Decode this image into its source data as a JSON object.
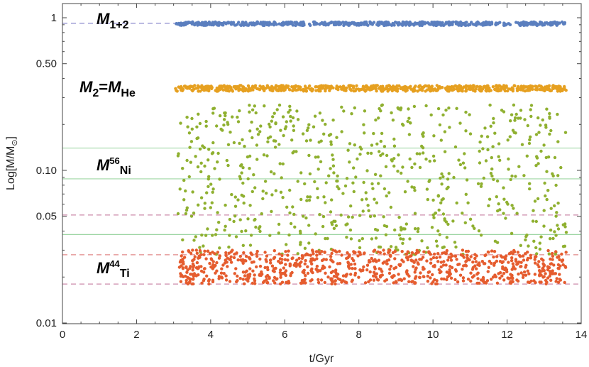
{
  "chart_data": {
    "type": "scatter",
    "title": "",
    "xlabel": "t/Gyr",
    "ylabel_main": "Log[M/M",
    "ylabel_sub": "⊙",
    "ylabel_close": "]",
    "xlim": [
      0,
      14
    ],
    "ylim": [
      0.01,
      1.2
    ],
    "yscale": "log",
    "grid": false,
    "x_ticks": [
      0,
      2,
      4,
      6,
      8,
      10,
      12,
      14
    ],
    "x_tick_labels": [
      "0",
      "2",
      "4",
      "6",
      "8",
      "10",
      "12",
      "14"
    ],
    "y_ticks": [
      0.01,
      0.05,
      0.1,
      0.5,
      1
    ],
    "y_tick_labels": [
      "0.01",
      "0.05",
      "0.10",
      "0.50",
      "1"
    ],
    "series": [
      {
        "name": "M1+2",
        "label_main": "M",
        "label_sub": "1+2",
        "color": "#5b7fbf",
        "x_range": [
          3.05,
          13.6
        ],
        "y_range": [
          0.89,
          0.94
        ],
        "count": 600
      },
      {
        "name": "M2=MHe",
        "label_main": "M",
        "label_sub": "2",
        "label_eq": "=M",
        "label_sub2": "He",
        "color": "#e6a020",
        "x_range": [
          3.05,
          13.6
        ],
        "y_range": [
          0.33,
          0.36
        ],
        "count": 650
      },
      {
        "name": "M56Ni",
        "label_main": "M",
        "label_sup": "56",
        "label_sub": "Ni",
        "color": "#8fb030",
        "x_range": [
          3.1,
          13.6
        ],
        "y_range": [
          0.028,
          0.27
        ],
        "count": 700
      },
      {
        "name": "M44Ti",
        "label_main": "M",
        "label_sup": "44",
        "label_sub": "Ti",
        "color": "#e55c2e",
        "x_range": [
          3.15,
          13.6
        ],
        "y_range": [
          0.018,
          0.03
        ],
        "count": 850
      }
    ],
    "reference_lines": [
      {
        "y": 0.92,
        "style": "dashed",
        "color": "#8a88cc",
        "x_from": 0,
        "x_to": 3.05
      },
      {
        "y": 0.14,
        "style": "solid",
        "color": "#9fd6a5",
        "x_from": 0,
        "x_to": 14
      },
      {
        "y": 0.088,
        "style": "solid",
        "color": "#9fd6a5",
        "x_from": 0,
        "x_to": 14
      },
      {
        "y": 0.051,
        "style": "dashed",
        "color": "#cc8aaa",
        "x_from": 0,
        "x_to": 14
      },
      {
        "y": 0.038,
        "style": "solid",
        "color": "#9fd6a5",
        "x_from": 0,
        "x_to": 14
      },
      {
        "y": 0.028,
        "style": "dashed",
        "color": "#e08888",
        "x_from": 0,
        "x_to": 14
      },
      {
        "y": 0.018,
        "style": "dashed",
        "color": "#cc8aaa",
        "x_from": 0,
        "x_to": 14
      }
    ]
  }
}
